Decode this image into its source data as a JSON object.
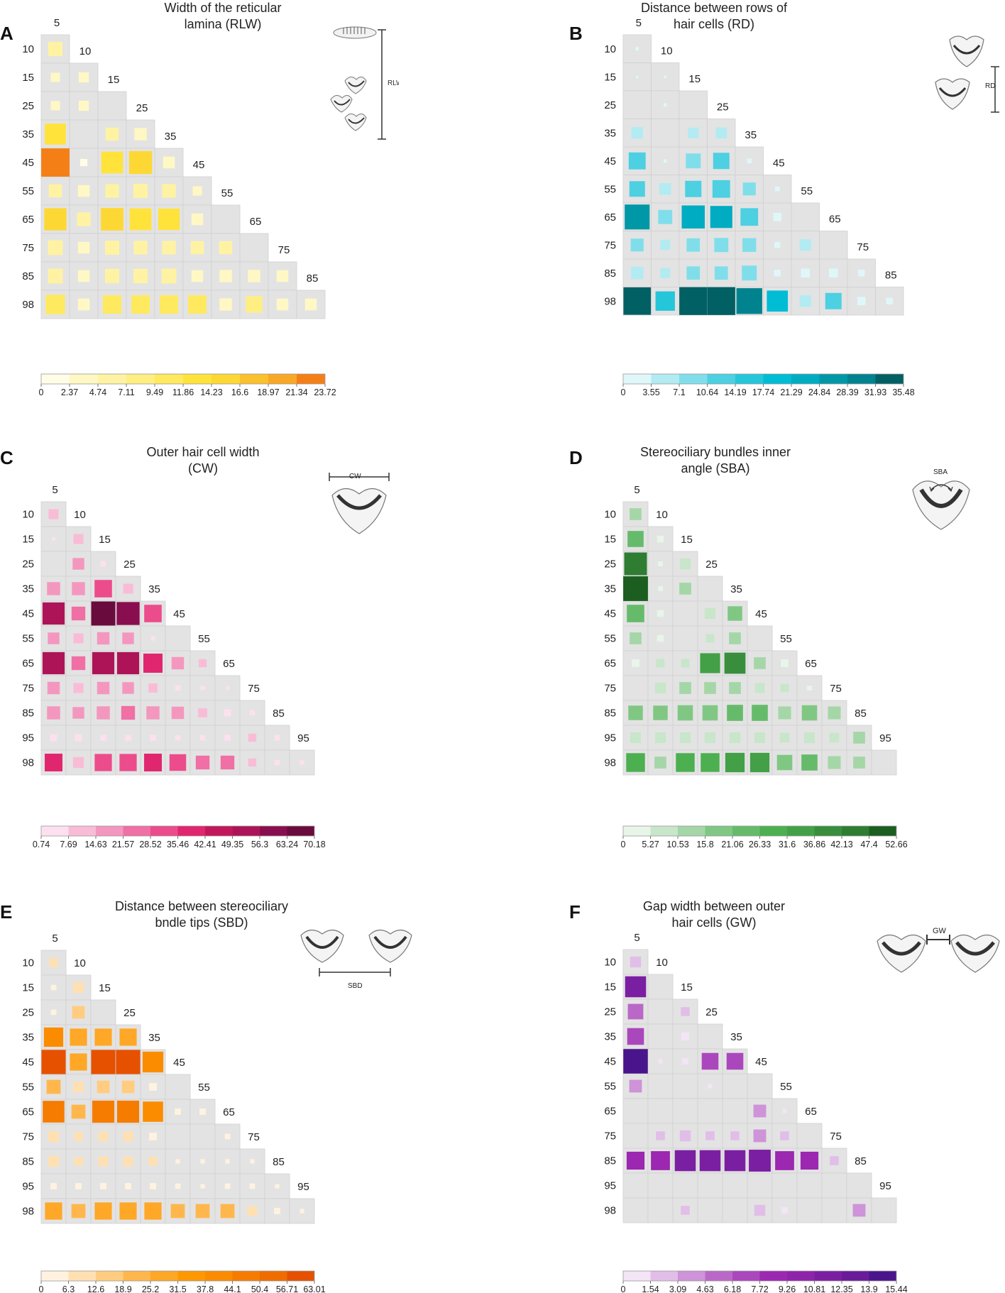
{
  "chart_data": [
    {
      "type": "heatmap",
      "panel": "A",
      "title": "Width of the reticular lamina (RLW)",
      "title_lines": [
        "Width of the reticular",
        "lamina (RLW)"
      ],
      "abbr": "RLW",
      "col_labels": [
        "5",
        "10",
        "15",
        "25",
        "35",
        "45",
        "55",
        "65",
        "75",
        "85"
      ],
      "row_labels": [
        "10",
        "15",
        "25",
        "35",
        "45",
        "55",
        "65",
        "75",
        "85",
        "98"
      ],
      "colorbar_ticks": [
        "0",
        "2.37",
        "4.74",
        "7.11",
        "9.49",
        "11.86",
        "14.23",
        "16.6",
        "18.97",
        "21.34",
        "23.72"
      ],
      "colorbar_colors": [
        "#fffde7",
        "#fff8c4",
        "#fff3a3",
        "#ffee82",
        "#ffe95e",
        "#ffe33b",
        "#fdd835",
        "#fbc02d",
        "#f9a825",
        "#f57f17"
      ],
      "vmin": 0,
      "vmax": 23.72,
      "values": [
        [
          6
        ],
        [
          2.5,
          3
        ],
        [
          2.5,
          3,
          null
        ],
        [
          13,
          null,
          5,
          4.5
        ],
        [
          23.5,
          1.5,
          14,
          15.5,
          4
        ],
        [
          5,
          4,
          5.5,
          6,
          5.5,
          2.5
        ],
        [
          14.5,
          5.5,
          15,
          14,
          13.5,
          4,
          null
        ],
        [
          6.5,
          4,
          6,
          5.5,
          5.5,
          5,
          5,
          null
        ],
        [
          6.5,
          4,
          6,
          6,
          6.5,
          4,
          4.5,
          4.5,
          4
        ],
        [
          11,
          4,
          10,
          10,
          10,
          10,
          4.5,
          8,
          4,
          4
        ]
      ]
    },
    {
      "type": "heatmap",
      "panel": "B",
      "title": "Distance between rows of hair cells (RD)",
      "title_lines": [
        "Distance between rows of",
        "hair cells (RD)"
      ],
      "abbr": "RD",
      "col_labels": [
        "5",
        "10",
        "15",
        "25",
        "35",
        "45",
        "55",
        "65",
        "75",
        "85"
      ],
      "row_labels": [
        "10",
        "15",
        "25",
        "35",
        "45",
        "55",
        "65",
        "75",
        "85",
        "98"
      ],
      "colorbar_ticks": [
        "0",
        "3.55",
        "7.1",
        "10.64",
        "14.19",
        "17.74",
        "21.29",
        "24.84",
        "28.39",
        "31.93",
        "35.48"
      ],
      "colorbar_colors": [
        "#e0f7fa",
        "#b2ebf2",
        "#80deea",
        "#4dd0e1",
        "#26c6da",
        "#00bcd4",
        "#00acc1",
        "#0097a7",
        "#00838f",
        "#006064"
      ],
      "vmin": 0,
      "vmax": 35.48,
      "values": [
        [
          0.5
        ],
        [
          0.3,
          0.3
        ],
        [
          null,
          0.5,
          null
        ],
        [
          6,
          null,
          5,
          5.5
        ],
        [
          13,
          0.5,
          10,
          12,
          1
        ],
        [
          11,
          6,
          12,
          14,
          7.5,
          1
        ],
        [
          28,
          9,
          24,
          22,
          14,
          3,
          null
        ],
        [
          7.5,
          4.5,
          8,
          9,
          8.5,
          1.5,
          6,
          null
        ],
        [
          7,
          4.5,
          8,
          8,
          10,
          2,
          3.5,
          3.5,
          2
        ],
        [
          34,
          17,
          35,
          35,
          30,
          20,
          6,
          12,
          3,
          2
        ]
      ]
    },
    {
      "type": "heatmap",
      "panel": "C",
      "title": "Outer hair cell width (CW)",
      "title_lines": [
        "Outer hair cell width",
        "(CW)"
      ],
      "abbr": "CW",
      "col_labels": [
        "5",
        "10",
        "15",
        "25",
        "35",
        "45",
        "55",
        "65",
        "75",
        "85",
        "95"
      ],
      "row_labels": [
        "10",
        "15",
        "25",
        "35",
        "45",
        "55",
        "65",
        "75",
        "85",
        "95",
        "98"
      ],
      "colorbar_ticks": [
        "0.74",
        "7.69",
        "14.63",
        "21.57",
        "28.52",
        "35.46",
        "42.41",
        "49.35",
        "56.3",
        "63.24",
        "70.18"
      ],
      "colorbar_colors": [
        "#fde0ef",
        "#f9bcd6",
        "#f497bf",
        "#f06fa5",
        "#ec4c8c",
        "#e0266f",
        "#c2185b",
        "#ad1457",
        "#880e4f",
        "#6a0b3e"
      ],
      "vmin": 0.74,
      "vmax": 70.18,
      "values": [
        [
          12
        ],
        [
          2,
          12
        ],
        [
          null,
          16,
          4
        ],
        [
          20,
          20,
          35,
          12
        ],
        [
          56,
          22,
          66,
          60,
          35
        ],
        [
          16,
          12,
          18,
          16,
          3
        ],
        [
          56,
          22,
          56,
          56,
          42,
          18,
          8
        ],
        [
          18,
          12,
          18,
          16,
          10,
          4,
          3,
          2
        ],
        [
          20,
          16,
          20,
          22,
          20,
          18,
          10,
          6,
          4
        ],
        [
          6,
          6,
          5,
          5,
          5,
          4,
          4,
          5,
          8,
          4
        ],
        [
          36,
          14,
          34,
          34,
          36,
          32,
          22,
          22,
          8,
          4,
          3
        ]
      ]
    },
    {
      "type": "heatmap",
      "panel": "D",
      "title": "Stereociliary bundles inner angle (SBA)",
      "title_lines": [
        "Stereociliary bundles inner",
        "angle (SBA)"
      ],
      "abbr": "SBA",
      "col_labels": [
        "5",
        "10",
        "15",
        "25",
        "35",
        "45",
        "55",
        "65",
        "75",
        "85",
        "95"
      ],
      "row_labels": [
        "10",
        "15",
        "25",
        "35",
        "45",
        "55",
        "65",
        "75",
        "85",
        "95",
        "98"
      ],
      "colorbar_ticks": [
        "0",
        "5.27",
        "10.53",
        "15.8",
        "21.06",
        "26.33",
        "31.6",
        "36.86",
        "42.13",
        "47.4",
        "52.66"
      ],
      "colorbar_colors": [
        "#e8f5e9",
        "#c8e6c9",
        "#a5d6a7",
        "#81c784",
        "#66bb6a",
        "#4caf50",
        "#43a047",
        "#388e3c",
        "#2e7d32",
        "#1b5e20"
      ],
      "vmin": 0,
      "vmax": 52.66,
      "values": [
        [
          12
        ],
        [
          22,
          4
        ],
        [
          44,
          2,
          10
        ],
        [
          52,
          2,
          12,
          null
        ],
        [
          26,
          4,
          null,
          10,
          18
        ],
        [
          12,
          4,
          null,
          6,
          12
        ],
        [
          5,
          6,
          6,
          34,
          38,
          12,
          5
        ],
        [
          null,
          10,
          12,
          12,
          12,
          8,
          6,
          2
        ],
        [
          18,
          18,
          20,
          20,
          22,
          22,
          14,
          20,
          14
        ],
        [
          10,
          10,
          10,
          10,
          10,
          10,
          8,
          10,
          8,
          12
        ],
        [
          30,
          12,
          30,
          30,
          32,
          32,
          20,
          22,
          14,
          12
        ]
      ]
    },
    {
      "type": "heatmap",
      "panel": "E",
      "title": "Distance between stereociliary bndle tips (SBD)",
      "title_lines": [
        "Distance between stereociliary",
        "bndle tips (SBD)"
      ],
      "abbr": "SBD",
      "col_labels": [
        "5",
        "10",
        "15",
        "25",
        "35",
        "45",
        "55",
        "65",
        "75",
        "85",
        "95"
      ],
      "row_labels": [
        "10",
        "15",
        "25",
        "35",
        "45",
        "55",
        "65",
        "75",
        "85",
        "95",
        "98"
      ],
      "colorbar_ticks": [
        "0",
        "6.3",
        "12.6",
        "18.9",
        "25.2",
        "31.5",
        "37.8",
        "44.1",
        "50.4",
        "56.71",
        "63.01"
      ],
      "colorbar_colors": [
        "#fff3e0",
        "#ffe0b2",
        "#ffcc80",
        "#ffb74d",
        "#ffa726",
        "#ff9800",
        "#fb8c00",
        "#f57c00",
        "#ef6c00",
        "#e65100"
      ],
      "vmin": 0,
      "vmax": 63.01,
      "values": [
        [
          8
        ],
        [
          3,
          12
        ],
        [
          3,
          16,
          null
        ],
        [
          38,
          30,
          30,
          30
        ],
        [
          60,
          30,
          60,
          60,
          44
        ],
        [
          20,
          12,
          16,
          16,
          6
        ],
        [
          48,
          20,
          50,
          50,
          42,
          4,
          4
        ],
        [
          12,
          8,
          10,
          10,
          6,
          null,
          null,
          3
        ],
        [
          12,
          8,
          10,
          10,
          8,
          2,
          2,
          2,
          2
        ],
        [
          4,
          4,
          4,
          4,
          4,
          3,
          2,
          3,
          3,
          2
        ],
        [
          30,
          20,
          30,
          30,
          30,
          20,
          20,
          20,
          10,
          4,
          2
        ]
      ]
    },
    {
      "type": "heatmap",
      "panel": "F",
      "title": "Gap width between outer hair cells (GW)",
      "title_lines": [
        "Gap width between outer",
        "hair cells (GW)"
      ],
      "abbr": "GW",
      "col_labels": [
        "5",
        "10",
        "15",
        "25",
        "35",
        "45",
        "55",
        "65",
        "75",
        "85",
        "95"
      ],
      "row_labels": [
        "10",
        "15",
        "25",
        "35",
        "45",
        "55",
        "65",
        "75",
        "85",
        "95",
        "98"
      ],
      "colorbar_ticks": [
        "0",
        "1.54",
        "3.09",
        "4.63",
        "6.18",
        "7.72",
        "9.26",
        "10.81",
        "12.35",
        "13.9",
        "15.44"
      ],
      "colorbar_colors": [
        "#f3e5f5",
        "#e1bee7",
        "#ce93d8",
        "#ba68c8",
        "#ab47bc",
        "#9c27b0",
        "#8e24aa",
        "#7b1fa2",
        "#6a1b9a",
        "#4a148c"
      ],
      "vmin": 0,
      "vmax": 15.44,
      "values": [
        [
          3
        ],
        [
          11,
          null
        ],
        [
          6,
          null,
          2
        ],
        [
          7,
          null,
          1.5,
          null
        ],
        [
          15,
          0.5,
          1,
          7,
          7
        ],
        [
          4,
          null,
          null,
          0.5,
          null
        ],
        [
          null,
          null,
          null,
          null,
          null,
          4,
          0.5
        ],
        [
          null,
          2,
          3,
          2,
          2,
          4,
          2,
          null
        ],
        [
          8,
          9,
          11,
          11,
          11,
          12,
          9,
          8,
          2
        ],
        [
          null,
          null,
          null,
          null,
          null,
          null,
          null,
          null,
          null,
          null
        ],
        [
          null,
          null,
          2,
          null,
          null,
          3,
          1,
          null,
          null,
          4
        ]
      ]
    }
  ]
}
